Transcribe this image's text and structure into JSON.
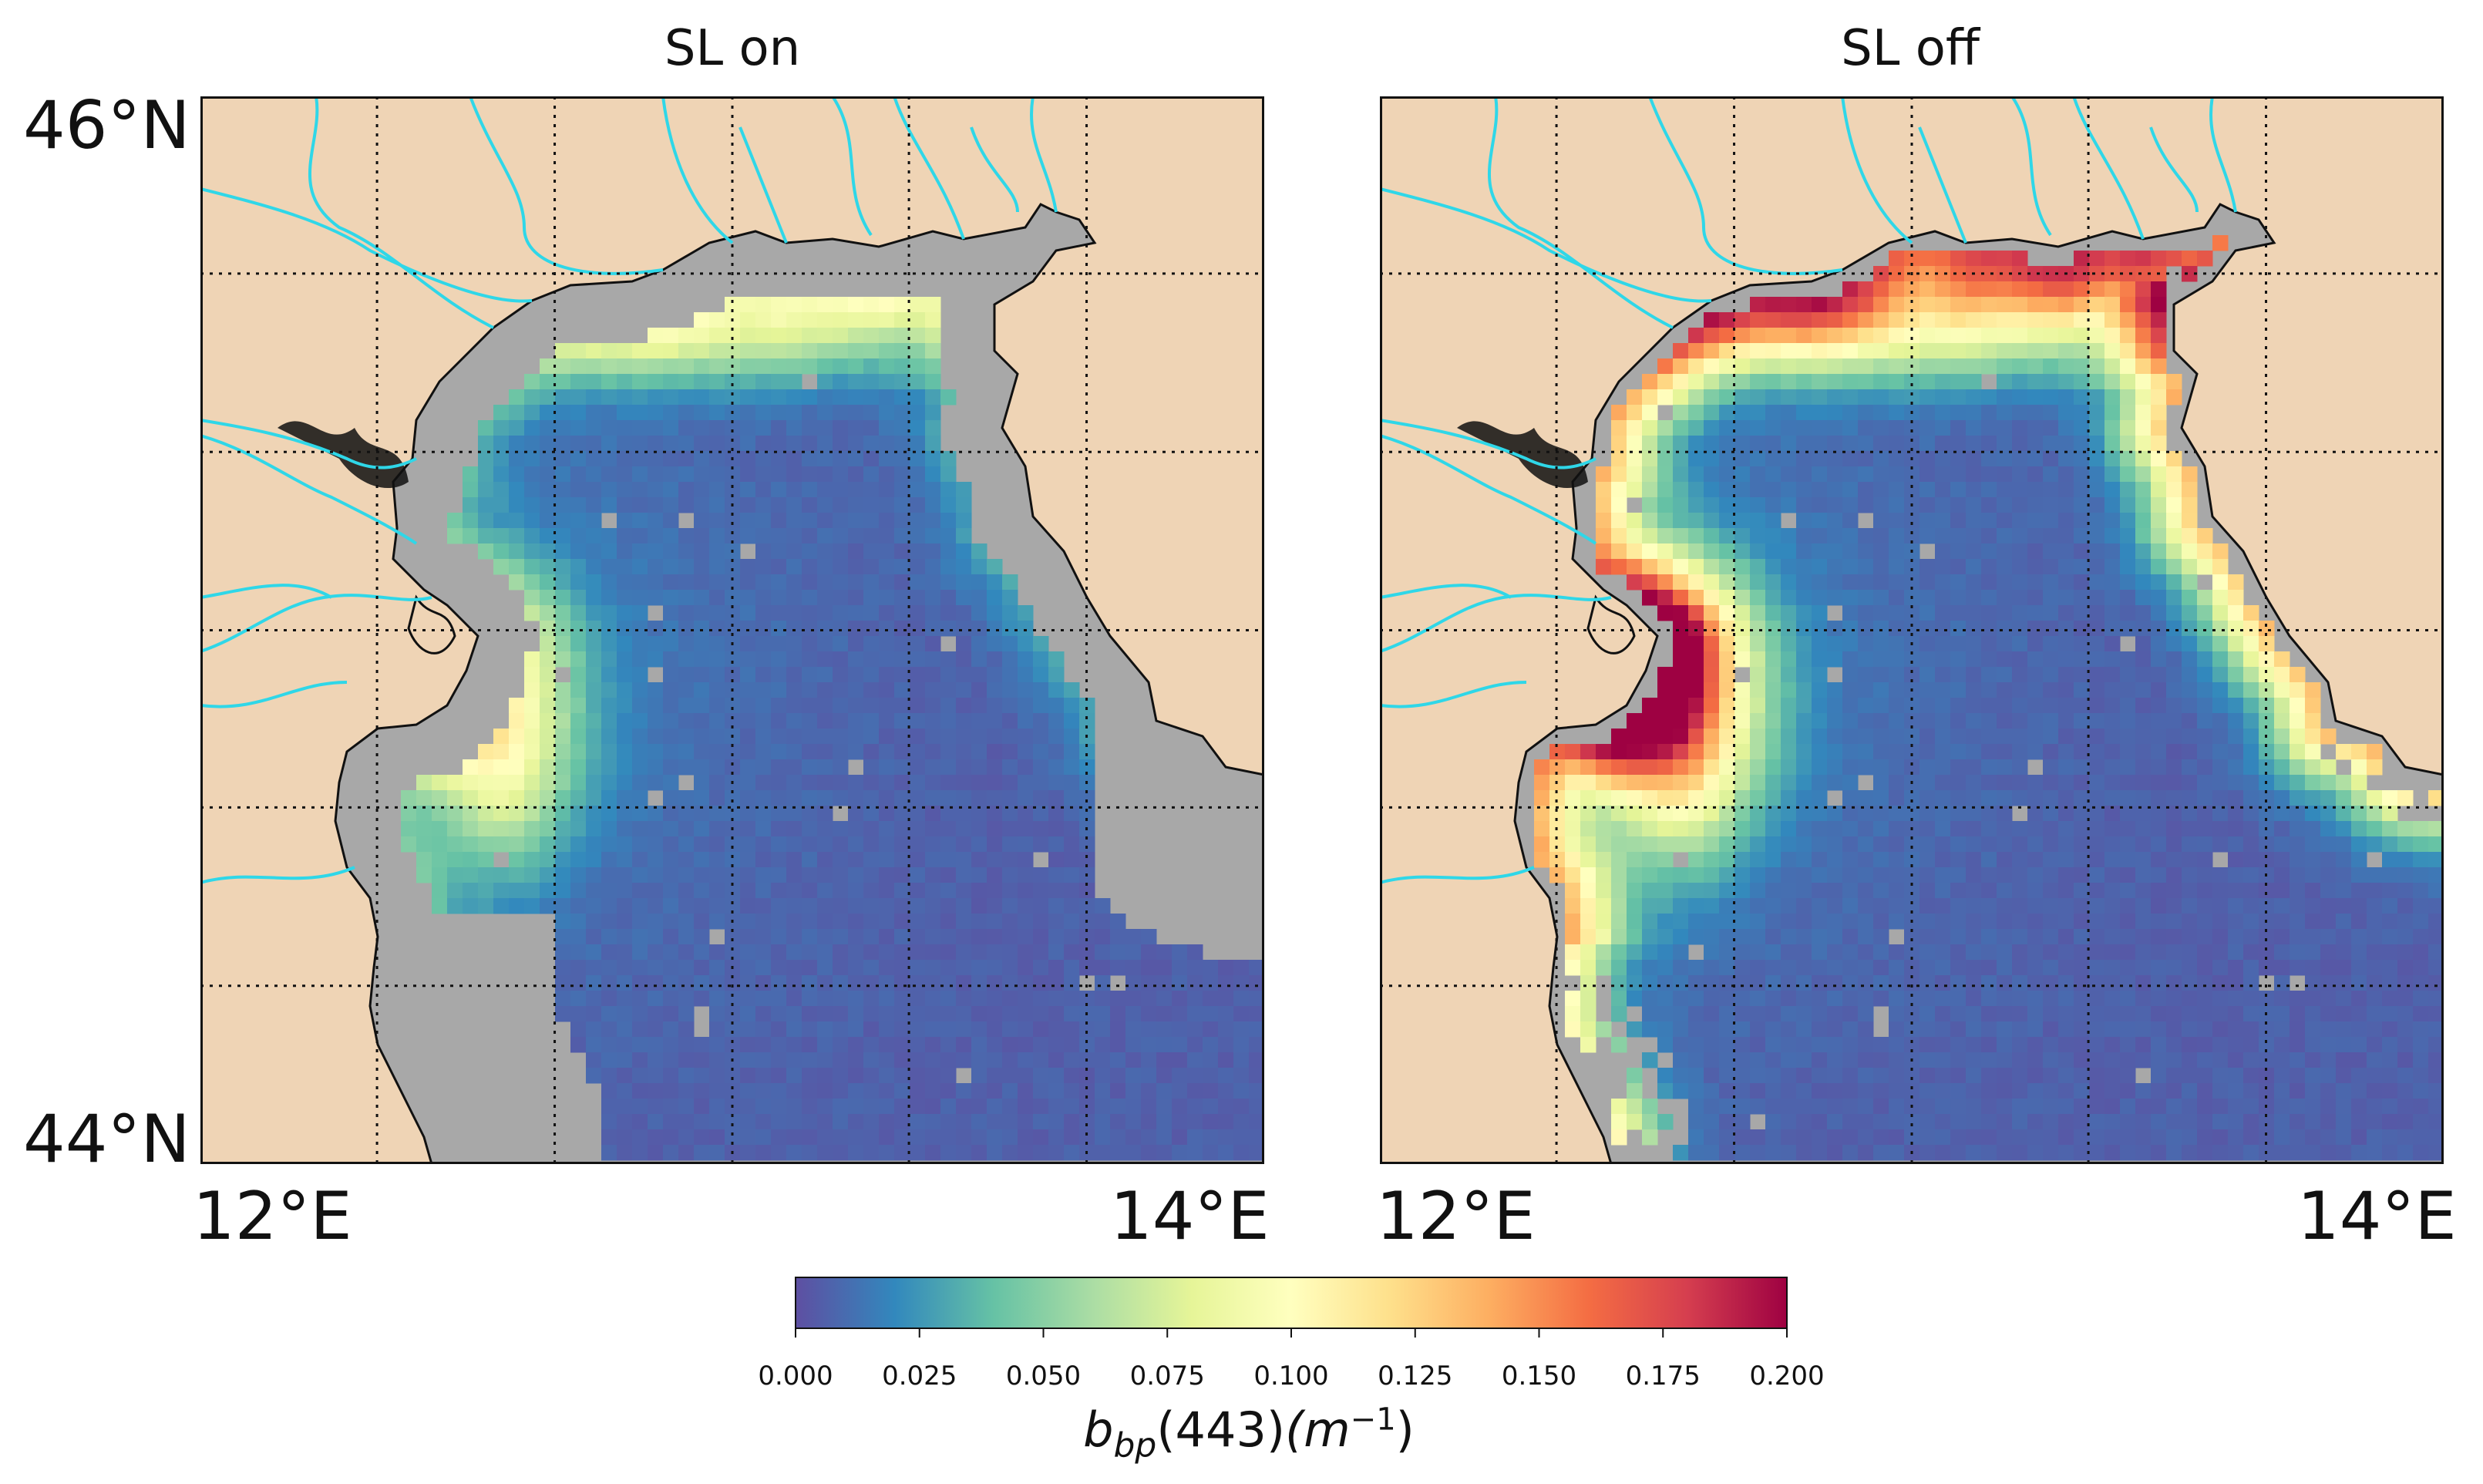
{
  "panels": [
    {
      "title": "SL on",
      "mode": "on"
    },
    {
      "title": "SL off",
      "mode": "off"
    }
  ],
  "latitude_labels": {
    "top": "46°N",
    "bottom": "44°N"
  },
  "longitude_labels": {
    "left": "12°E",
    "right": "14°E"
  },
  "colorbar": {
    "colormap": "Spectral_r",
    "range": [
      0.0,
      0.2
    ],
    "ticks": [
      "0.000",
      "0.025",
      "0.050",
      "0.075",
      "0.100",
      "0.125",
      "0.150",
      "0.175",
      "0.200"
    ],
    "label": {
      "base": "b",
      "sub": "bp",
      "wavelength": "(443)",
      "unit_base": "(m",
      "unit_sup": "−1",
      "unit_close": ")"
    }
  },
  "colors": {
    "land": "#efd4b5",
    "no_data_sea": "#a8a8a8",
    "river": "#2fd7e8",
    "coastline": "#111111",
    "grid": "#111111"
  }
}
